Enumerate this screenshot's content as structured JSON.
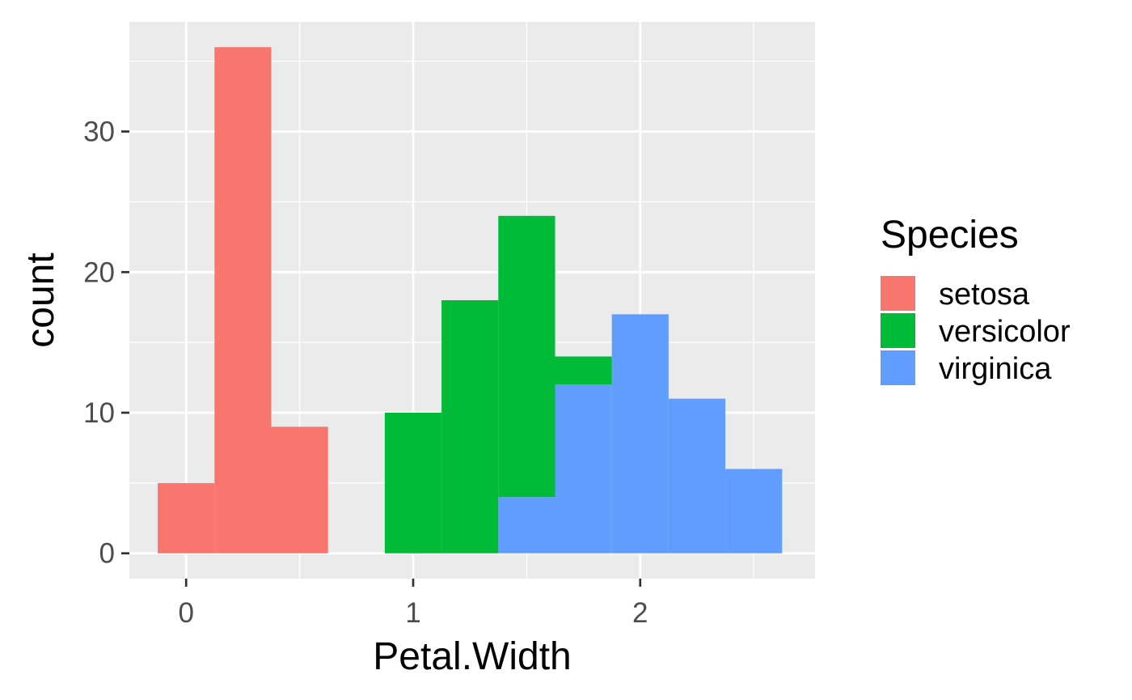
{
  "chart_data": {
    "type": "bar",
    "subtype": "stacked-histogram",
    "xlabel": "Petal.Width",
    "ylabel": "count",
    "xlim": [
      -0.25,
      2.77
    ],
    "ylim": [
      -1.8,
      37.8
    ],
    "x_ticks": [
      0,
      1,
      2
    ],
    "y_ticks": [
      0,
      10,
      20,
      30
    ],
    "grid": true,
    "panel_background": "#EBEBEB",
    "grid_color": "#FFFFFF",
    "legend": {
      "title": "Species",
      "position": "right"
    },
    "bin_width": 0.25,
    "series": [
      {
        "name": "setosa",
        "color": "#F8766D",
        "bins": [
          {
            "x_start": -0.125,
            "x_end": 0.125,
            "count": 5
          },
          {
            "x_start": 0.125,
            "x_end": 0.375,
            "count": 36
          },
          {
            "x_start": 0.375,
            "x_end": 0.625,
            "count": 9
          }
        ]
      },
      {
        "name": "versicolor",
        "color": "#00BA38",
        "bins": [
          {
            "x_start": 0.875,
            "x_end": 1.125,
            "count": 10
          },
          {
            "x_start": 1.125,
            "x_end": 1.375,
            "count": 18
          },
          {
            "x_start": 1.375,
            "x_end": 1.625,
            "count": 20
          },
          {
            "x_start": 1.625,
            "x_end": 1.875,
            "count": 2
          }
        ]
      },
      {
        "name": "virginica",
        "color": "#619CFF",
        "bins": [
          {
            "x_start": 1.375,
            "x_end": 1.625,
            "count": 4
          },
          {
            "x_start": 1.625,
            "x_end": 1.875,
            "count": 12
          },
          {
            "x_start": 1.875,
            "x_end": 2.125,
            "count": 17
          },
          {
            "x_start": 2.125,
            "x_end": 2.375,
            "count": 11
          },
          {
            "x_start": 2.375,
            "x_end": 2.625,
            "count": 6
          }
        ]
      }
    ]
  }
}
